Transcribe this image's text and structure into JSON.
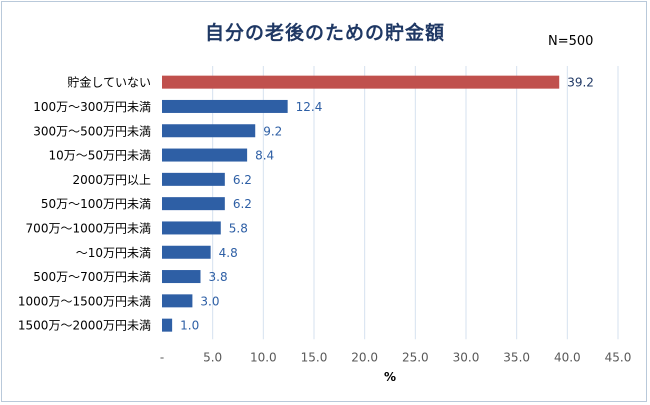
{
  "title": "自分の老後のための貯金額",
  "sample_size": "N=500",
  "colors": {
    "highlight": "#c0504d",
    "bar": "#2e5fa5",
    "highlight_label": "#1f3864",
    "value_label": "#2e5fa5",
    "grid": "#d6e2ef"
  },
  "chart_data": {
    "type": "bar",
    "orientation": "horizontal",
    "title": "自分の老後のための貯金額",
    "xlabel": "%",
    "ylabel": "",
    "xlim": [
      0,
      45
    ],
    "x_tick_labels": [
      "-",
      "5.0",
      "10.0",
      "15.0",
      "20.0",
      "25.0",
      "30.0",
      "35.0",
      "40.0",
      "45.0"
    ],
    "grid": true,
    "categories": [
      "貯金していない",
      "100万～300万円未満",
      "300万～500万円未満",
      "10万～50万円未満",
      "2000万円以上",
      "50万～100万円未満",
      "700万～1000万円未満",
      "～10万円未満",
      "500万～700万円未満",
      "1000万～1500万円未満",
      "1500万～2000万円未満"
    ],
    "values": [
      39.2,
      12.4,
      9.2,
      8.4,
      6.2,
      6.2,
      5.8,
      4.8,
      3.8,
      3.0,
      1.0
    ],
    "value_labels": [
      "39.2",
      "12.4",
      "9.2",
      "8.4",
      "6.2",
      "6.2",
      "5.8",
      "4.8",
      "3.8",
      "3.0",
      "1.0"
    ],
    "highlight_index": 0
  }
}
